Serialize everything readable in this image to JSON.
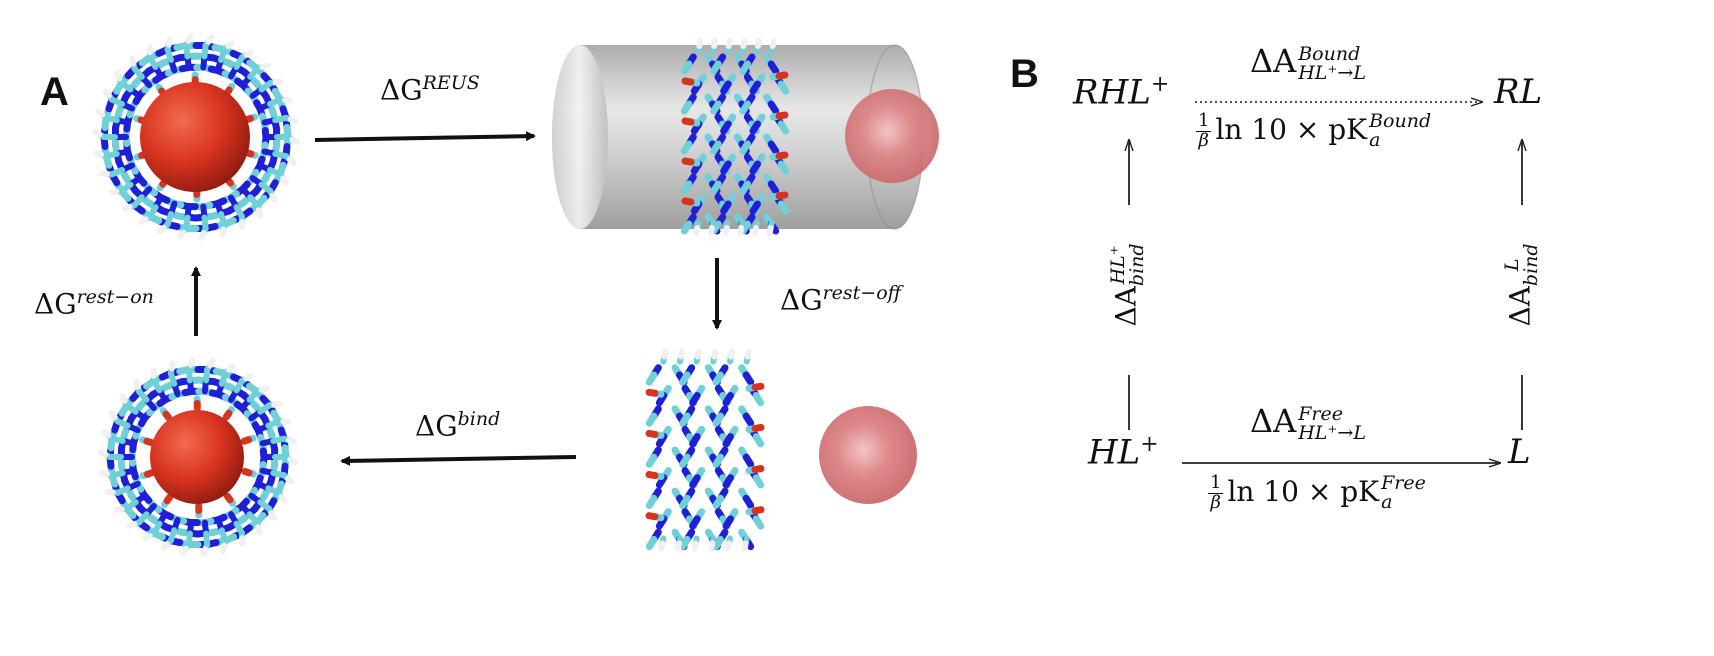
{
  "panel_a": {
    "letter": "A",
    "edges": {
      "reus": {
        "delta": "ΔG",
        "super": "REUS"
      },
      "rest_off": {
        "delta": "ΔG",
        "super": "rest−off"
      },
      "bind": {
        "delta": "ΔG",
        "super": "bind"
      },
      "rest_on": {
        "delta": "ΔG",
        "super": "rest−on"
      }
    }
  },
  "panel_b": {
    "letter": "B",
    "states": {
      "top_left": {
        "base": "RHL",
        "sup": "+"
      },
      "top_right": {
        "base": "RL",
        "sup": ""
      },
      "bottom_left": {
        "base": "HL",
        "sup": "+"
      },
      "bottom_right": {
        "base": "L",
        "sup": ""
      }
    },
    "top_edge": {
      "above": {
        "delta": "ΔA",
        "up": "Bound",
        "down": "HL⁺→L"
      },
      "below": {
        "num": "1",
        "den": "β",
        "text": "ln 10 × pK",
        "up": "Bound",
        "down": "a"
      }
    },
    "bottom_edge": {
      "above": {
        "delta": "ΔA",
        "up": "Free",
        "down": "HL⁺→L"
      },
      "below": {
        "num": "1",
        "den": "β",
        "text": "ln 10 × pK",
        "up": "Free",
        "down": "a"
      }
    },
    "left_edge": {
      "delta": "ΔA",
      "up": "HL⁺",
      "down": "bind"
    },
    "right_edge": {
      "delta": "ΔA",
      "up": "L",
      "down": "bind"
    }
  },
  "colors": {
    "ligand_red": "#d8331f",
    "ligand_pink": "#d9787a",
    "cylinder_gray": "#cfcfcf",
    "carbon": "#6fd0d8",
    "nitrogen": "#1f1fd6",
    "oxygen": "#d8331f",
    "hydrogen": "#f0f0f0"
  }
}
